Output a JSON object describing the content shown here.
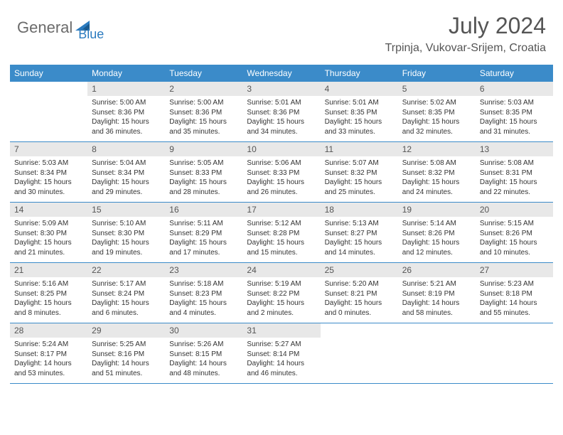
{
  "logo": {
    "text1": "General",
    "text2": "Blue"
  },
  "title": "July 2024",
  "location": "Trpinja, Vukovar-Srijem, Croatia",
  "colors": {
    "header_bg": "#3b8bc9",
    "header_text": "#ffffff",
    "daynum_bg": "#e8e8e8",
    "daynum_text": "#555555",
    "border": "#3b8bc9",
    "body_text": "#333333",
    "title_text": "#555555",
    "logo_gray": "#6b6b6b",
    "logo_blue": "#2b7bbf"
  },
  "typography": {
    "title_fontsize": 32,
    "location_fontsize": 16,
    "weekday_fontsize": 12,
    "daynum_fontsize": 12,
    "body_fontsize": 10,
    "logo_fontsize": 22
  },
  "layout": {
    "columns": 7,
    "cell_min_height": 84
  },
  "weekdays": [
    "Sunday",
    "Monday",
    "Tuesday",
    "Wednesday",
    "Thursday",
    "Friday",
    "Saturday"
  ],
  "weeks": [
    [
      {
        "num": "",
        "lines": []
      },
      {
        "num": "1",
        "lines": [
          "Sunrise: 5:00 AM",
          "Sunset: 8:36 PM",
          "Daylight: 15 hours",
          "and 36 minutes."
        ]
      },
      {
        "num": "2",
        "lines": [
          "Sunrise: 5:00 AM",
          "Sunset: 8:36 PM",
          "Daylight: 15 hours",
          "and 35 minutes."
        ]
      },
      {
        "num": "3",
        "lines": [
          "Sunrise: 5:01 AM",
          "Sunset: 8:36 PM",
          "Daylight: 15 hours",
          "and 34 minutes."
        ]
      },
      {
        "num": "4",
        "lines": [
          "Sunrise: 5:01 AM",
          "Sunset: 8:35 PM",
          "Daylight: 15 hours",
          "and 33 minutes."
        ]
      },
      {
        "num": "5",
        "lines": [
          "Sunrise: 5:02 AM",
          "Sunset: 8:35 PM",
          "Daylight: 15 hours",
          "and 32 minutes."
        ]
      },
      {
        "num": "6",
        "lines": [
          "Sunrise: 5:03 AM",
          "Sunset: 8:35 PM",
          "Daylight: 15 hours",
          "and 31 minutes."
        ]
      }
    ],
    [
      {
        "num": "7",
        "lines": [
          "Sunrise: 5:03 AM",
          "Sunset: 8:34 PM",
          "Daylight: 15 hours",
          "and 30 minutes."
        ]
      },
      {
        "num": "8",
        "lines": [
          "Sunrise: 5:04 AM",
          "Sunset: 8:34 PM",
          "Daylight: 15 hours",
          "and 29 minutes."
        ]
      },
      {
        "num": "9",
        "lines": [
          "Sunrise: 5:05 AM",
          "Sunset: 8:33 PM",
          "Daylight: 15 hours",
          "and 28 minutes."
        ]
      },
      {
        "num": "10",
        "lines": [
          "Sunrise: 5:06 AM",
          "Sunset: 8:33 PM",
          "Daylight: 15 hours",
          "and 26 minutes."
        ]
      },
      {
        "num": "11",
        "lines": [
          "Sunrise: 5:07 AM",
          "Sunset: 8:32 PM",
          "Daylight: 15 hours",
          "and 25 minutes."
        ]
      },
      {
        "num": "12",
        "lines": [
          "Sunrise: 5:08 AM",
          "Sunset: 8:32 PM",
          "Daylight: 15 hours",
          "and 24 minutes."
        ]
      },
      {
        "num": "13",
        "lines": [
          "Sunrise: 5:08 AM",
          "Sunset: 8:31 PM",
          "Daylight: 15 hours",
          "and 22 minutes."
        ]
      }
    ],
    [
      {
        "num": "14",
        "lines": [
          "Sunrise: 5:09 AM",
          "Sunset: 8:30 PM",
          "Daylight: 15 hours",
          "and 21 minutes."
        ]
      },
      {
        "num": "15",
        "lines": [
          "Sunrise: 5:10 AM",
          "Sunset: 8:30 PM",
          "Daylight: 15 hours",
          "and 19 minutes."
        ]
      },
      {
        "num": "16",
        "lines": [
          "Sunrise: 5:11 AM",
          "Sunset: 8:29 PM",
          "Daylight: 15 hours",
          "and 17 minutes."
        ]
      },
      {
        "num": "17",
        "lines": [
          "Sunrise: 5:12 AM",
          "Sunset: 8:28 PM",
          "Daylight: 15 hours",
          "and 15 minutes."
        ]
      },
      {
        "num": "18",
        "lines": [
          "Sunrise: 5:13 AM",
          "Sunset: 8:27 PM",
          "Daylight: 15 hours",
          "and 14 minutes."
        ]
      },
      {
        "num": "19",
        "lines": [
          "Sunrise: 5:14 AM",
          "Sunset: 8:26 PM",
          "Daylight: 15 hours",
          "and 12 minutes."
        ]
      },
      {
        "num": "20",
        "lines": [
          "Sunrise: 5:15 AM",
          "Sunset: 8:26 PM",
          "Daylight: 15 hours",
          "and 10 minutes."
        ]
      }
    ],
    [
      {
        "num": "21",
        "lines": [
          "Sunrise: 5:16 AM",
          "Sunset: 8:25 PM",
          "Daylight: 15 hours",
          "and 8 minutes."
        ]
      },
      {
        "num": "22",
        "lines": [
          "Sunrise: 5:17 AM",
          "Sunset: 8:24 PM",
          "Daylight: 15 hours",
          "and 6 minutes."
        ]
      },
      {
        "num": "23",
        "lines": [
          "Sunrise: 5:18 AM",
          "Sunset: 8:23 PM",
          "Daylight: 15 hours",
          "and 4 minutes."
        ]
      },
      {
        "num": "24",
        "lines": [
          "Sunrise: 5:19 AM",
          "Sunset: 8:22 PM",
          "Daylight: 15 hours",
          "and 2 minutes."
        ]
      },
      {
        "num": "25",
        "lines": [
          "Sunrise: 5:20 AM",
          "Sunset: 8:21 PM",
          "Daylight: 15 hours",
          "and 0 minutes."
        ]
      },
      {
        "num": "26",
        "lines": [
          "Sunrise: 5:21 AM",
          "Sunset: 8:19 PM",
          "Daylight: 14 hours",
          "and 58 minutes."
        ]
      },
      {
        "num": "27",
        "lines": [
          "Sunrise: 5:23 AM",
          "Sunset: 8:18 PM",
          "Daylight: 14 hours",
          "and 55 minutes."
        ]
      }
    ],
    [
      {
        "num": "28",
        "lines": [
          "Sunrise: 5:24 AM",
          "Sunset: 8:17 PM",
          "Daylight: 14 hours",
          "and 53 minutes."
        ]
      },
      {
        "num": "29",
        "lines": [
          "Sunrise: 5:25 AM",
          "Sunset: 8:16 PM",
          "Daylight: 14 hours",
          "and 51 minutes."
        ]
      },
      {
        "num": "30",
        "lines": [
          "Sunrise: 5:26 AM",
          "Sunset: 8:15 PM",
          "Daylight: 14 hours",
          "and 48 minutes."
        ]
      },
      {
        "num": "31",
        "lines": [
          "Sunrise: 5:27 AM",
          "Sunset: 8:14 PM",
          "Daylight: 14 hours",
          "and 46 minutes."
        ]
      },
      {
        "num": "",
        "lines": []
      },
      {
        "num": "",
        "lines": []
      },
      {
        "num": "",
        "lines": []
      }
    ]
  ]
}
